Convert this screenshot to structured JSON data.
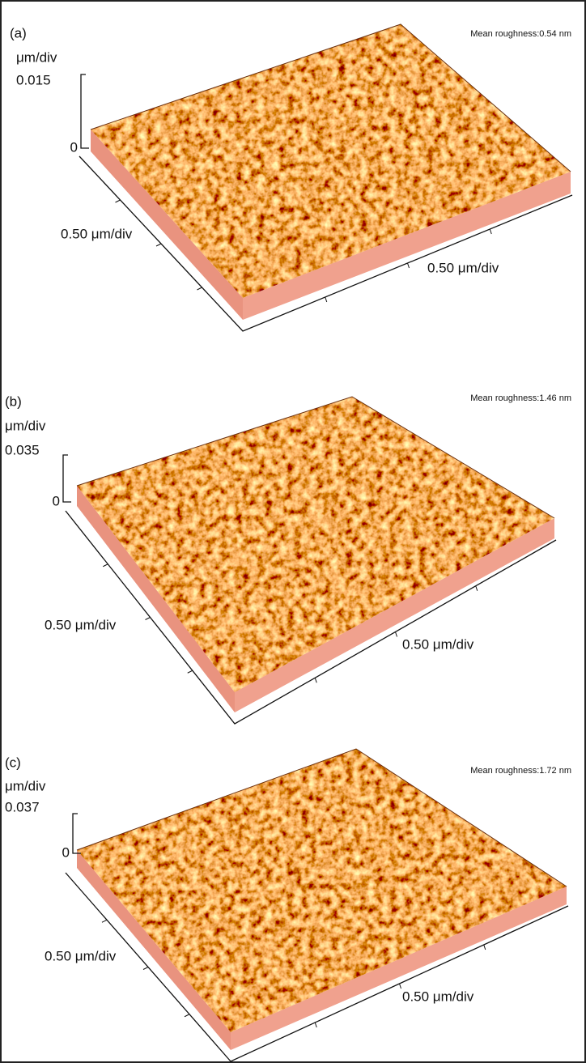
{
  "panels": [
    {
      "label": "(a)",
      "z_unit": "μm/div",
      "z_max": "0.015",
      "z_zero": "0",
      "x_scale": "0.50 μm/div",
      "y_scale": "0.50 μm/div",
      "roughness": "Mean roughness:0.54 nm"
    },
    {
      "label": "(b)",
      "z_unit": "μm/div",
      "z_max": "0.035",
      "z_zero": "0",
      "x_scale": "0.50 μm/div",
      "y_scale": "0.50 μm/div",
      "roughness": "Mean roughness:1.46 nm"
    },
    {
      "label": "(c)",
      "z_unit": "μm/div",
      "z_max": "0.037",
      "z_zero": "0",
      "x_scale": "0.50 μm/div",
      "y_scale": "0.50 μm/div",
      "roughness": "Mean roughness:1.72 nm"
    }
  ]
}
